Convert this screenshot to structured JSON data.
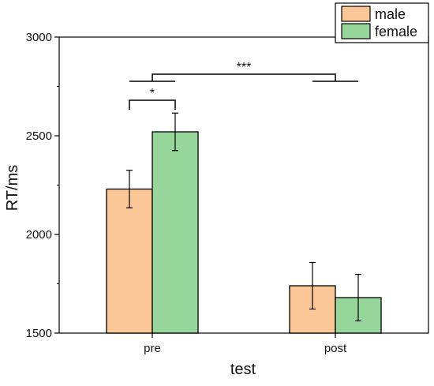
{
  "chart_data": {
    "type": "bar",
    "title": "",
    "xlabel": "test",
    "ylabel": "RT/ms",
    "ylim": [
      1500,
      3000
    ],
    "yticks": [
      1500,
      2000,
      2500,
      3000
    ],
    "categories": [
      "pre",
      "post"
    ],
    "series": [
      {
        "name": "male",
        "color": "#FBC797",
        "values": [
          2230,
          1740
        ],
        "errors": [
          95,
          118
        ]
      },
      {
        "name": "female",
        "color": "#96D69A",
        "values": [
          2520,
          1680
        ],
        "errors": [
          95,
          118
        ]
      }
    ],
    "legend_position": "top-right",
    "grid": false,
    "significance": [
      {
        "label": "*",
        "between": "male vs female within pre"
      },
      {
        "label": "***",
        "between": "pre vs post"
      }
    ]
  }
}
